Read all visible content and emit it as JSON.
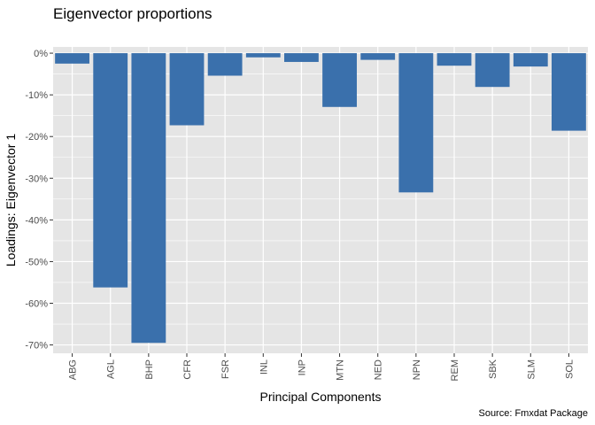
{
  "chart_data": {
    "type": "bar",
    "title": "Eigenvector proportions",
    "xlabel": "Principal Components",
    "ylabel": "Loadings: Eigenvector 1",
    "caption": "Source: Fmxdat Package",
    "categories": [
      "ABG",
      "AGL",
      "BHP",
      "CFR",
      "FSR",
      "INL",
      "INP",
      "MTN",
      "NED",
      "NPN",
      "REM",
      "SBK",
      "SLM",
      "SOL"
    ],
    "values": [
      -0.025,
      -0.562,
      -0.695,
      -0.173,
      -0.054,
      -0.01,
      -0.021,
      -0.129,
      -0.016,
      -0.334,
      -0.03,
      -0.081,
      -0.032,
      -0.186
    ],
    "ylim": [
      -0.72,
      0.015
    ],
    "yticks": [
      0,
      -0.1,
      -0.2,
      -0.3,
      -0.4,
      -0.5,
      -0.6,
      -0.7
    ],
    "ytick_labels": [
      "0%",
      "-10%",
      "-20%",
      "-30%",
      "-40%",
      "-50%",
      "-60%",
      "-70%"
    ],
    "grid": true,
    "bar_color": "#3A70AC",
    "panel_color": "#E5E5E5",
    "grid_color": "#FFFFFF"
  }
}
